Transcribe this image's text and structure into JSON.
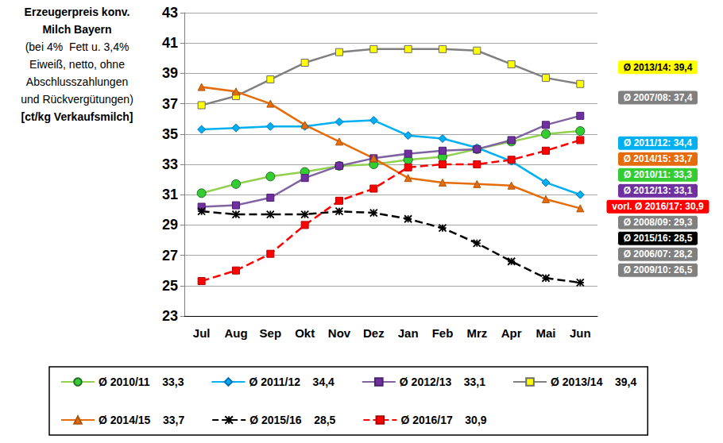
{
  "chart_data": {
    "type": "line",
    "title": "Erzeugerpreis konv.\nMilch Bayern",
    "subtitle": "(bei 4%  Fett u. 3,4%\nEiweiß, netto, ohne\nAbschlusszahlungen\nund Rückvergütungen)",
    "y_label": "[ct/kg Verkaufsmilch]",
    "categories": [
      "Jul",
      "Aug",
      "Sep",
      "Okt",
      "Nov",
      "Dez",
      "Jan",
      "Feb",
      "Mrz",
      "Apr",
      "Mai",
      "Jun"
    ],
    "ylim": [
      23,
      43
    ],
    "yticks": [
      23,
      25,
      27,
      29,
      31,
      33,
      35,
      37,
      39,
      41,
      43
    ],
    "grid": true,
    "legend": "bottom",
    "series": [
      {
        "name": "Ø 2010/11    33,3",
        "color": "#92d050",
        "marker": "circle",
        "line_style": "solid",
        "values": [
          31.1,
          31.7,
          32.2,
          32.5,
          32.9,
          33.0,
          33.3,
          33.5,
          34.0,
          34.5,
          35.0,
          35.2
        ]
      },
      {
        "name": "Ø 2011/12    34,4",
        "color": "#00b0f0",
        "marker": "diamond",
        "line_style": "solid",
        "values": [
          35.3,
          35.4,
          35.5,
          35.5,
          35.8,
          35.9,
          34.9,
          34.7,
          34.1,
          33.2,
          31.8,
          31.0
        ]
      },
      {
        "name": "Ø 2012/13    33,1",
        "color": "#8064a2",
        "marker": "square",
        "line_style": "solid",
        "values": [
          30.2,
          30.3,
          30.8,
          32.1,
          32.9,
          33.4,
          33.7,
          33.9,
          34.0,
          34.6,
          35.6,
          36.2
        ]
      },
      {
        "name": "Ø 2013/14    39,4",
        "color": "#808080",
        "marker": "square",
        "line_style": "solid",
        "values": [
          36.9,
          37.5,
          38.6,
          39.7,
          40.4,
          40.6,
          40.6,
          40.6,
          40.5,
          39.6,
          38.7,
          38.3
        ]
      },
      {
        "name": "Ø 2014/15    33,7",
        "color": "#e46c0a",
        "marker": "triangle",
        "line_style": "solid",
        "values": [
          38.1,
          37.8,
          37.0,
          35.6,
          34.5,
          33.4,
          32.1,
          31.8,
          31.7,
          31.6,
          30.7,
          30.1
        ]
      },
      {
        "name": "Ø 2015/16    28,5",
        "color": "#000000",
        "marker": "x",
        "line_style": "dashed",
        "values": [
          29.9,
          29.7,
          29.7,
          29.7,
          29.9,
          29.8,
          29.4,
          28.8,
          27.8,
          26.6,
          25.5,
          25.2
        ]
      },
      {
        "name": "Ø 2016/17    30,9",
        "color": "#ff0000",
        "marker": "square",
        "line_style": "dashed",
        "values": [
          25.3,
          26.0,
          27.1,
          29.0,
          30.6,
          31.4,
          32.8,
          33.0,
          33.0,
          33.3,
          33.9,
          34.6
        ]
      }
    ],
    "annotations": [
      {
        "text": "Ø 2013/14: 39,4",
        "value": 39.4,
        "color": "#ffff00"
      },
      {
        "text": "Ø 2007/08: 37,4",
        "value": 37.4,
        "color": "#808080"
      },
      {
        "text": "Ø 2011/12: 34,4",
        "value": 34.4,
        "color": "#00b0f0"
      },
      {
        "text": "Ø 2014/15: 33,7",
        "value": 33.7,
        "color": "#e46c0a"
      },
      {
        "text": "Ø 2010/11: 33,3",
        "value": 33.3,
        "color": "#33cc33"
      },
      {
        "text": "Ø 2012/13: 33,1",
        "value": 33.1,
        "color": "#7030a0"
      },
      {
        "text": "vorl. Ø 2016/17: 30,9",
        "value": 30.9,
        "color": "#ff0000"
      },
      {
        "text": "Ø 2008/09: 29,3",
        "value": 29.3,
        "color": "#808080"
      },
      {
        "text": "Ø 2015/16: 28,5",
        "value": 28.5,
        "color": "#000000"
      },
      {
        "text": "Ø 2006/07: 28,2",
        "value": 28.2,
        "color": "#808080"
      },
      {
        "text": "Ø 2009/10: 26,5",
        "value": 26.5,
        "color": "#808080"
      }
    ]
  }
}
